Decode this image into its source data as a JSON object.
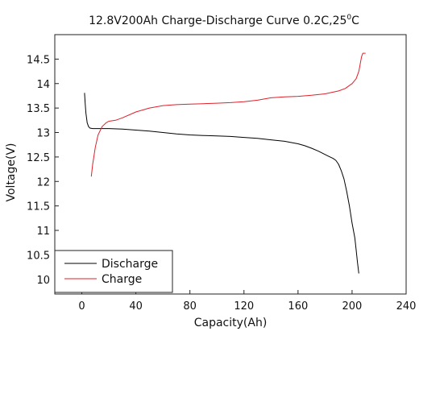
{
  "chart_data": {
    "type": "line",
    "title": "12.8V200Ah Charge-Discharge Curve  0.2C,25",
    "title_superscript": "0",
    "title_unit": "C",
    "xlabel": "Capacity(Ah)",
    "ylabel": "Voltage(V)",
    "xlim": [
      -20,
      240
    ],
    "ylim": [
      9.7,
      15.0
    ],
    "x_ticks": [
      0,
      40,
      80,
      120,
      160,
      200,
      240
    ],
    "y_ticks": [
      10,
      10.5,
      11,
      11.5,
      12,
      12.5,
      13,
      13.5,
      14,
      14.5
    ],
    "y_tick_labels": [
      "10",
      "10.5",
      "11",
      "11.5",
      "12",
      "12.5",
      "13",
      "13.5",
      "14",
      "14.5"
    ],
    "grid": false,
    "legend": "bottom-left",
    "series": [
      {
        "name": "Discharge",
        "color": "#000000",
        "x": [
          2,
          2.5,
          3,
          4,
          5,
          6,
          8,
          10,
          15,
          20,
          30,
          40,
          50,
          60,
          70,
          80,
          90,
          100,
          110,
          120,
          130,
          140,
          150,
          160,
          165,
          170,
          175,
          180,
          183,
          186,
          188,
          190,
          192,
          194,
          196,
          198,
          200,
          202,
          203,
          204,
          205
        ],
        "y": [
          13.81,
          13.6,
          13.4,
          13.2,
          13.12,
          13.09,
          13.08,
          13.08,
          13.08,
          13.08,
          13.07,
          13.05,
          13.03,
          13.0,
          12.97,
          12.95,
          12.94,
          12.93,
          12.92,
          12.9,
          12.88,
          12.85,
          12.82,
          12.77,
          12.73,
          12.68,
          12.62,
          12.55,
          12.51,
          12.47,
          12.43,
          12.35,
          12.22,
          12.05,
          11.8,
          11.5,
          11.15,
          10.85,
          10.6,
          10.35,
          10.12
        ]
      },
      {
        "name": "Charge",
        "color": "#e0202a",
        "x": [
          7,
          8,
          10,
          12,
          15,
          18,
          20,
          25,
          30,
          40,
          50,
          60,
          70,
          80,
          90,
          100,
          110,
          120,
          130,
          140,
          150,
          160,
          170,
          180,
          190,
          195,
          200,
          203,
          205,
          206,
          207,
          208,
          209,
          210
        ],
        "y": [
          12.1,
          12.35,
          12.7,
          12.95,
          13.12,
          13.2,
          13.23,
          13.25,
          13.3,
          13.42,
          13.5,
          13.55,
          13.57,
          13.58,
          13.59,
          13.6,
          13.61,
          13.63,
          13.66,
          13.71,
          13.73,
          13.74,
          13.76,
          13.79,
          13.85,
          13.9,
          14.0,
          14.1,
          14.25,
          14.4,
          14.55,
          14.62,
          14.62,
          14.62
        ]
      }
    ]
  }
}
